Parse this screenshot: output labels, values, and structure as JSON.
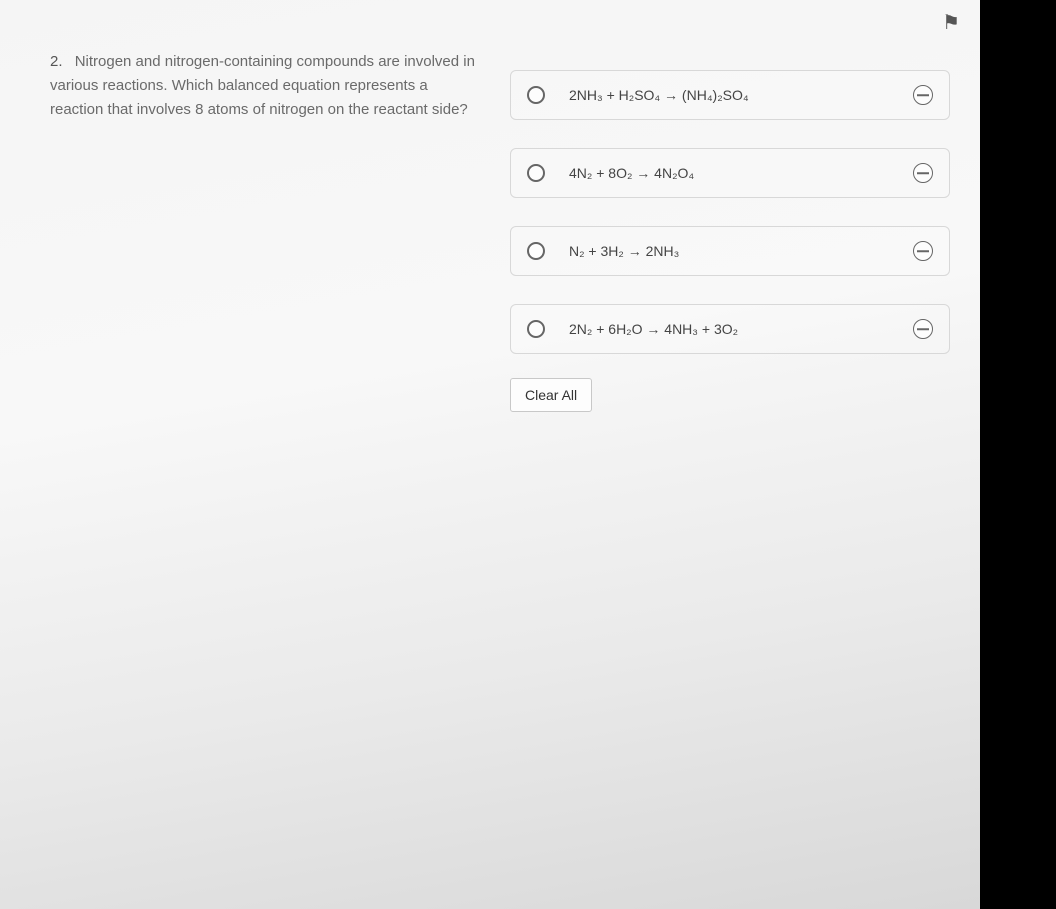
{
  "flag_icon": "⚑",
  "question": {
    "number": "2.",
    "text": "Nitrogen and nitrogen-containing compounds are involved in various reactions. Which balanced equation represents a reaction that involves 8 atoms of nitrogen on the reactant side?"
  },
  "options": [
    {
      "equation": "2NH₃ + H₂SO₄ → (NH₄)₂SO₄"
    },
    {
      "equation": "4N₂ + 8O₂ → 4N₂O₄"
    },
    {
      "equation": "N₂ + 3H₂ → 2NH₃"
    },
    {
      "equation": "2N₂ + 6H₂O → 4NH₃ + 3O₂"
    }
  ],
  "clear_all_label": "Clear All",
  "colors": {
    "page_bg_top": "#f5f5f5",
    "page_bg_bottom": "#d8d8d8",
    "border": "#d8d8d8",
    "text_muted": "#6a6a6a",
    "text_dark": "#444",
    "control": "#666"
  }
}
